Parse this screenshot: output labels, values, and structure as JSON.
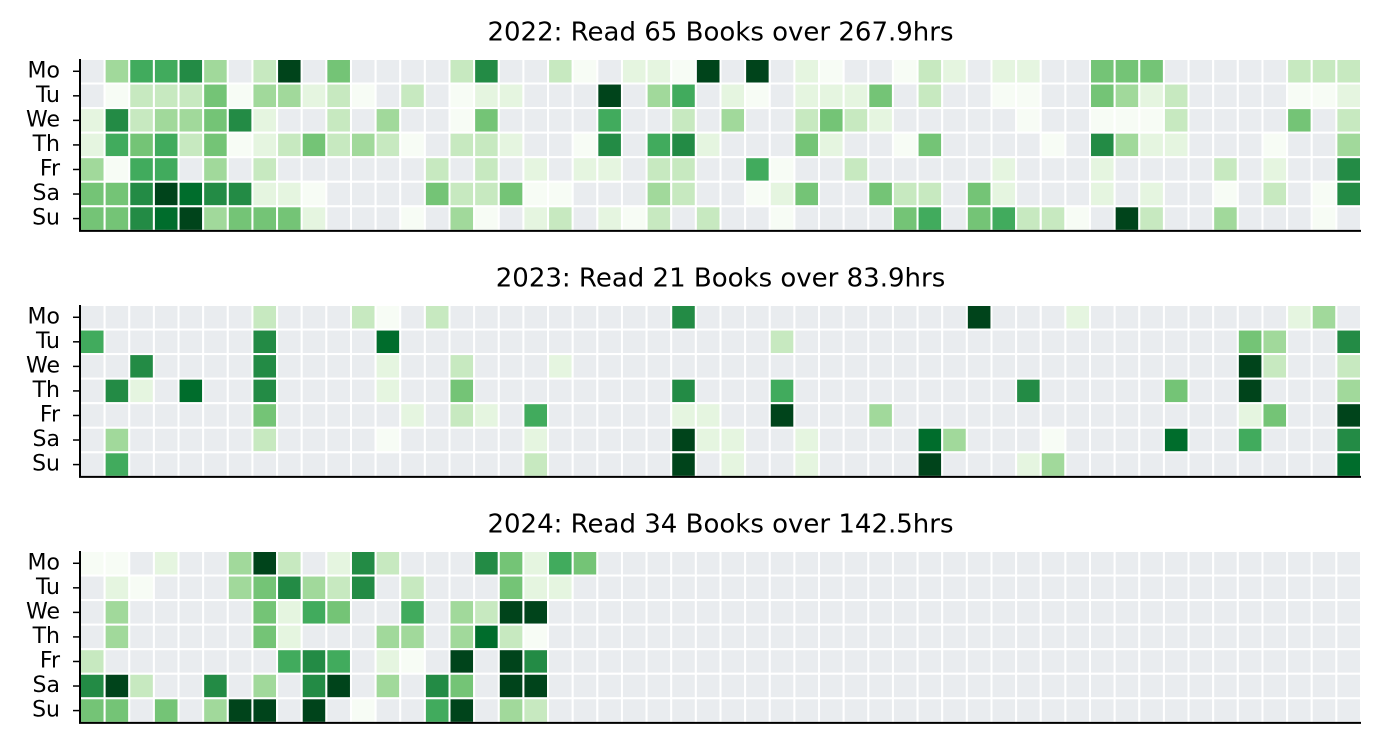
{
  "chart_data": [
    {
      "type": "heatmap",
      "title": "2022: Read 65 Books over 267.9hrs",
      "xlabel": "",
      "ylabel": "",
      "rows": [
        "Mo",
        "Tu",
        "We",
        "Th",
        "Fr",
        "Sa",
        "Su"
      ],
      "weeks": 52,
      "scale_max": 8,
      "colormap": [
        "#e9ecef",
        "#f7fcf5",
        "#e5f5e0",
        "#c7e9c0",
        "#a1d99b",
        "#74c476",
        "#41ab5d",
        "#238b45",
        "#006d2c",
        "#00441b"
      ],
      "grid": false,
      "values": [
        [
          0,
          4,
          6,
          6,
          7,
          4,
          0,
          3,
          9,
          0,
          5,
          0,
          0,
          0,
          0,
          3,
          7,
          0,
          0,
          3,
          1,
          0,
          2,
          2,
          1,
          9,
          0,
          9,
          0,
          2,
          1,
          0,
          0,
          1,
          3,
          2,
          0,
          2,
          2,
          0,
          0,
          5,
          5,
          5,
          0,
          0,
          0,
          0,
          0,
          3,
          3,
          3
        ],
        [
          0,
          1,
          3,
          3,
          3,
          5,
          1,
          4,
          4,
          2,
          3,
          1,
          0,
          3,
          0,
          1,
          2,
          2,
          0,
          0,
          0,
          9,
          0,
          4,
          6,
          0,
          2,
          1,
          0,
          2,
          2,
          2,
          5,
          0,
          3,
          0,
          0,
          1,
          1,
          0,
          0,
          5,
          4,
          2,
          3,
          0,
          0,
          0,
          0,
          1,
          1,
          2
        ],
        [
          2,
          7,
          3,
          4,
          4,
          5,
          7,
          2,
          0,
          0,
          3,
          0,
          4,
          0,
          0,
          1,
          5,
          0,
          0,
          0,
          0,
          6,
          0,
          0,
          3,
          0,
          4,
          0,
          0,
          3,
          5,
          3,
          2,
          0,
          0,
          0,
          0,
          0,
          1,
          0,
          0,
          1,
          1,
          1,
          3,
          0,
          0,
          0,
          0,
          5,
          0,
          3
        ],
        [
          2,
          6,
          5,
          6,
          3,
          5,
          1,
          2,
          3,
          5,
          3,
          4,
          3,
          1,
          0,
          3,
          3,
          2,
          0,
          0,
          1,
          7,
          0,
          6,
          7,
          2,
          0,
          0,
          0,
          5,
          2,
          0,
          0,
          1,
          5,
          0,
          0,
          0,
          0,
          1,
          0,
          7,
          4,
          2,
          2,
          0,
          0,
          0,
          1,
          0,
          0,
          4
        ],
        [
          4,
          1,
          6,
          6,
          0,
          4,
          0,
          3,
          0,
          0,
          0,
          0,
          0,
          0,
          3,
          0,
          3,
          0,
          2,
          0,
          2,
          2,
          0,
          3,
          3,
          0,
          0,
          6,
          1,
          0,
          0,
          3,
          0,
          0,
          0,
          0,
          0,
          2,
          0,
          0,
          0,
          2,
          0,
          0,
          0,
          0,
          3,
          0,
          2,
          0,
          0,
          7
        ],
        [
          5,
          5,
          7,
          9,
          8,
          7,
          7,
          2,
          2,
          1,
          0,
          0,
          0,
          0,
          5,
          3,
          3,
          5,
          1,
          1,
          0,
          0,
          0,
          4,
          3,
          0,
          0,
          1,
          2,
          5,
          0,
          0,
          5,
          3,
          3,
          0,
          5,
          2,
          0,
          0,
          0,
          2,
          0,
          2,
          0,
          0,
          1,
          0,
          3,
          0,
          1,
          7
        ],
        [
          5,
          5,
          7,
          8,
          9,
          4,
          5,
          5,
          5,
          2,
          0,
          0,
          0,
          1,
          0,
          4,
          1,
          0,
          2,
          3,
          0,
          2,
          1,
          3,
          0,
          3,
          0,
          0,
          1,
          0,
          0,
          0,
          0,
          5,
          6,
          0,
          5,
          6,
          3,
          3,
          1,
          0,
          9,
          3,
          0,
          0,
          4,
          0,
          0,
          0,
          1,
          0
        ]
      ]
    },
    {
      "type": "heatmap",
      "title": "2023: Read 21 Books over 83.9hrs",
      "xlabel": "",
      "ylabel": "",
      "rows": [
        "Mo",
        "Tu",
        "We",
        "Th",
        "Fr",
        "Sa",
        "Su"
      ],
      "weeks": 52,
      "scale_max": 8,
      "colormap": [
        "#e9ecef",
        "#f7fcf5",
        "#e5f5e0",
        "#c7e9c0",
        "#a1d99b",
        "#74c476",
        "#41ab5d",
        "#238b45",
        "#006d2c",
        "#00441b"
      ],
      "grid": false,
      "values": [
        [
          0,
          0,
          0,
          0,
          0,
          0,
          0,
          3,
          0,
          0,
          0,
          3,
          1,
          0,
          3,
          0,
          0,
          0,
          0,
          0,
          0,
          0,
          0,
          0,
          7,
          0,
          0,
          0,
          0,
          0,
          0,
          0,
          0,
          0,
          0,
          0,
          9,
          0,
          0,
          0,
          2,
          0,
          0,
          0,
          0,
          0,
          0,
          0,
          0,
          2,
          4,
          0
        ],
        [
          6,
          0,
          0,
          0,
          0,
          0,
          0,
          7,
          0,
          0,
          0,
          0,
          8,
          0,
          0,
          0,
          0,
          0,
          0,
          0,
          0,
          0,
          0,
          0,
          0,
          0,
          0,
          0,
          3,
          0,
          0,
          0,
          0,
          0,
          0,
          0,
          0,
          0,
          0,
          0,
          0,
          0,
          0,
          0,
          0,
          0,
          0,
          5,
          4,
          0,
          0,
          7
        ],
        [
          0,
          0,
          7,
          0,
          0,
          0,
          0,
          7,
          0,
          0,
          0,
          0,
          2,
          0,
          0,
          3,
          0,
          0,
          0,
          2,
          0,
          0,
          0,
          0,
          0,
          0,
          0,
          0,
          0,
          0,
          0,
          0,
          0,
          0,
          0,
          0,
          0,
          0,
          0,
          0,
          0,
          0,
          0,
          0,
          0,
          0,
          0,
          9,
          3,
          0,
          0,
          3
        ],
        [
          0,
          7,
          2,
          0,
          8,
          0,
          0,
          7,
          0,
          0,
          0,
          0,
          2,
          0,
          0,
          5,
          0,
          0,
          0,
          0,
          0,
          0,
          0,
          0,
          7,
          0,
          0,
          0,
          6,
          0,
          0,
          0,
          0,
          0,
          0,
          0,
          0,
          0,
          7,
          0,
          0,
          0,
          0,
          0,
          5,
          0,
          0,
          9,
          0,
          0,
          0,
          4
        ],
        [
          0,
          0,
          0,
          0,
          0,
          0,
          0,
          5,
          0,
          0,
          0,
          0,
          0,
          2,
          0,
          3,
          2,
          0,
          6,
          0,
          0,
          0,
          0,
          0,
          2,
          2,
          0,
          0,
          9,
          0,
          0,
          0,
          4,
          0,
          0,
          0,
          0,
          0,
          0,
          0,
          0,
          0,
          0,
          0,
          0,
          0,
          0,
          2,
          5,
          0,
          0,
          9
        ],
        [
          0,
          4,
          0,
          0,
          0,
          0,
          0,
          3,
          0,
          0,
          0,
          0,
          1,
          0,
          0,
          0,
          0,
          0,
          2,
          0,
          0,
          0,
          0,
          0,
          9,
          2,
          2,
          0,
          0,
          2,
          0,
          0,
          0,
          0,
          8,
          4,
          0,
          0,
          0,
          1,
          0,
          0,
          0,
          0,
          8,
          0,
          0,
          6,
          0,
          0,
          0,
          7
        ],
        [
          0,
          6,
          0,
          0,
          0,
          0,
          0,
          0,
          0,
          0,
          0,
          0,
          0,
          0,
          0,
          0,
          0,
          0,
          3,
          0,
          0,
          0,
          0,
          0,
          9,
          0,
          2,
          0,
          0,
          2,
          0,
          0,
          0,
          0,
          9,
          0,
          0,
          0,
          2,
          4,
          0,
          0,
          0,
          0,
          0,
          0,
          0,
          0,
          0,
          0,
          0,
          8
        ]
      ]
    },
    {
      "type": "heatmap",
      "title": "2024: Read 34 Books over 142.5hrs",
      "xlabel": "",
      "ylabel": "",
      "rows": [
        "Mo",
        "Tu",
        "We",
        "Th",
        "Fr",
        "Sa",
        "Su"
      ],
      "weeks": 52,
      "scale_max": 8,
      "colormap": [
        "#e9ecef",
        "#f7fcf5",
        "#e5f5e0",
        "#c7e9c0",
        "#a1d99b",
        "#74c476",
        "#41ab5d",
        "#238b45",
        "#006d2c",
        "#00441b"
      ],
      "grid": false,
      "values": [
        [
          1,
          1,
          0,
          2,
          0,
          0,
          4,
          9,
          3,
          0,
          2,
          7,
          3,
          0,
          0,
          0,
          7,
          5,
          2,
          6,
          5,
          0,
          0,
          0,
          0,
          0,
          0,
          0,
          0,
          0,
          0,
          0,
          0,
          0,
          0,
          0,
          0,
          0,
          0,
          0,
          0,
          0,
          0,
          0,
          0,
          0,
          0,
          0,
          0,
          0,
          0,
          0
        ],
        [
          0,
          2,
          1,
          0,
          0,
          0,
          4,
          5,
          7,
          4,
          3,
          7,
          0,
          3,
          0,
          0,
          0,
          5,
          2,
          2,
          0,
          0,
          0,
          0,
          0,
          0,
          0,
          0,
          0,
          0,
          0,
          0,
          0,
          0,
          0,
          0,
          0,
          0,
          0,
          0,
          0,
          0,
          0,
          0,
          0,
          0,
          0,
          0,
          0,
          0,
          0,
          0
        ],
        [
          0,
          4,
          0,
          0,
          0,
          0,
          0,
          5,
          2,
          6,
          5,
          0,
          0,
          6,
          0,
          4,
          3,
          9,
          9,
          0,
          0,
          0,
          0,
          0,
          0,
          0,
          0,
          0,
          0,
          0,
          0,
          0,
          0,
          0,
          0,
          0,
          0,
          0,
          0,
          0,
          0,
          0,
          0,
          0,
          0,
          0,
          0,
          0,
          0,
          0,
          0,
          0
        ],
        [
          0,
          4,
          0,
          0,
          0,
          0,
          0,
          5,
          2,
          0,
          0,
          0,
          4,
          4,
          0,
          4,
          8,
          3,
          1,
          0,
          0,
          0,
          0,
          0,
          0,
          0,
          0,
          0,
          0,
          0,
          0,
          0,
          0,
          0,
          0,
          0,
          0,
          0,
          0,
          0,
          0,
          0,
          0,
          0,
          0,
          0,
          0,
          0,
          0,
          0,
          0,
          0
        ],
        [
          3,
          0,
          0,
          0,
          0,
          0,
          0,
          0,
          6,
          7,
          6,
          0,
          2,
          1,
          0,
          9,
          0,
          9,
          7,
          0,
          0,
          0,
          0,
          0,
          0,
          0,
          0,
          0,
          0,
          0,
          0,
          0,
          0,
          0,
          0,
          0,
          0,
          0,
          0,
          0,
          0,
          0,
          0,
          0,
          0,
          0,
          0,
          0,
          0,
          0,
          0,
          0
        ],
        [
          7,
          9,
          3,
          0,
          0,
          7,
          0,
          4,
          0,
          7,
          9,
          0,
          4,
          0,
          7,
          5,
          0,
          9,
          9,
          0,
          0,
          0,
          0,
          0,
          0,
          0,
          0,
          0,
          0,
          0,
          0,
          0,
          0,
          0,
          0,
          0,
          0,
          0,
          0,
          0,
          0,
          0,
          0,
          0,
          0,
          0,
          0,
          0,
          0,
          0,
          0,
          0
        ],
        [
          5,
          5,
          0,
          5,
          0,
          4,
          9,
          9,
          0,
          9,
          0,
          1,
          0,
          0,
          6,
          9,
          0,
          4,
          3,
          0,
          0,
          0,
          0,
          0,
          0,
          0,
          0,
          0,
          0,
          0,
          0,
          0,
          0,
          0,
          0,
          0,
          0,
          0,
          0,
          0,
          0,
          0,
          0,
          0,
          0,
          0,
          0,
          0,
          0,
          0,
          0,
          0
        ]
      ]
    }
  ]
}
